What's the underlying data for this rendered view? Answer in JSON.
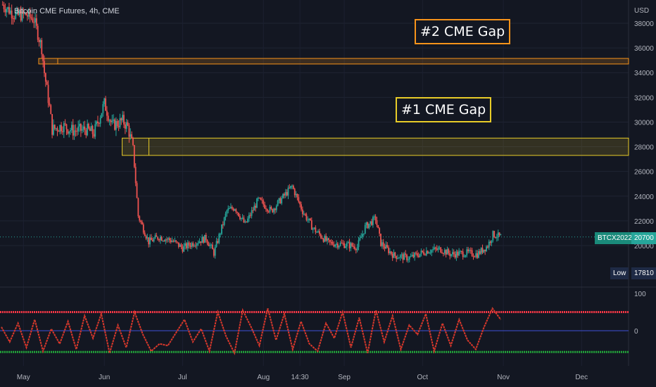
{
  "chart_data": [
    {
      "type": "candlestick",
      "title": "Bitcoin CME Futures, 4h, CME",
      "currency": "USD",
      "ylim": [
        17000,
        39000
      ],
      "yticks": [
        20000,
        22000,
        24000,
        26000,
        28000,
        30000,
        32000,
        34000,
        36000,
        38000
      ],
      "xticks": [
        "May",
        "Jun",
        "Jul",
        "Aug",
        "14:30",
        "Sep",
        "Oct",
        "Nov",
        "Dec"
      ],
      "series": [
        {
          "name": "BTCX2022",
          "x": [
            "2022-04-23",
            "2022-04-28",
            "2022-05-02",
            "2022-05-05",
            "2022-05-08",
            "2022-05-09",
            "2022-05-11",
            "2022-05-12",
            "2022-05-16",
            "2022-05-20",
            "2022-05-25",
            "2022-05-28",
            "2022-06-01",
            "2022-06-04",
            "2022-06-08",
            "2022-06-10",
            "2022-06-12",
            "2022-06-14",
            "2022-06-18",
            "2022-06-22",
            "2022-06-27",
            "2022-07-01",
            "2022-07-05",
            "2022-07-10",
            "2022-07-13",
            "2022-07-18",
            "2022-07-21",
            "2022-07-25",
            "2022-07-30",
            "2022-08-04",
            "2022-08-08",
            "2022-08-12",
            "2022-08-16",
            "2022-08-20",
            "2022-08-26",
            "2022-09-01",
            "2022-09-06",
            "2022-09-09",
            "2022-09-13",
            "2022-09-15",
            "2022-09-20",
            "2022-09-26",
            "2022-10-03",
            "2022-10-08",
            "2022-10-12",
            "2022-10-18",
            "2022-10-22",
            "2022-10-26",
            "2022-10-28",
            "2022-10-31"
          ],
          "y": [
            39500,
            38600,
            38700,
            38300,
            36000,
            34000,
            31200,
            29400,
            29700,
            29300,
            29400,
            29100,
            31500,
            29700,
            30100,
            29600,
            27900,
            22400,
            20300,
            20700,
            20400,
            19800,
            20200,
            20600,
            19400,
            22800,
            23100,
            21700,
            23700,
            22800,
            23800,
            24800,
            22800,
            21400,
            20200,
            20100,
            19900,
            21500,
            22200,
            20200,
            19200,
            19000,
            19600,
            19700,
            19300,
            19400,
            19300,
            20000,
            20900,
            20700
          ]
        }
      ],
      "gaps": [
        {
          "label": "#2 CME Gap",
          "from": 34700,
          "to": 35150,
          "start": "2022-05-09"
        },
        {
          "label": "#1 CME Gap",
          "from": 27300,
          "to": 28700,
          "start": "2022-06-10"
        }
      ],
      "last_price_label": "BTCX2022",
      "last_price": 20700,
      "low_label": "Low",
      "low_value": 17810,
      "ytick_labels": [
        "20000",
        "22000",
        "24000",
        "26000",
        "28000",
        "30000",
        "32000",
        "34000",
        "36000",
        "38000"
      ]
    },
    {
      "type": "line",
      "title": "",
      "ylim": [
        -100,
        100
      ],
      "yticks": [
        0,
        100
      ],
      "ytick_labels": [
        "0",
        "100"
      ],
      "upper_band": 50,
      "middle_line": 0,
      "lower_band": -57,
      "series": [
        {
          "values": [
            10,
            -30,
            20,
            -45,
            30,
            -55,
            5,
            -35,
            25,
            -50,
            40,
            -20,
            45,
            -60,
            15,
            -45,
            50,
            -10,
            -55,
            -35,
            -40,
            -5,
            30,
            -30,
            5,
            -55,
            50,
            -15,
            -60,
            55,
            10,
            -40,
            60,
            -25,
            45,
            -50,
            25,
            -35,
            -55,
            20,
            -20,
            50,
            -45,
            35,
            -60,
            55,
            -30,
            40,
            -50,
            15,
            -10,
            45,
            -55,
            20,
            -40,
            30,
            -25,
            -50,
            10,
            60,
            30
          ]
        }
      ]
    }
  ]
}
